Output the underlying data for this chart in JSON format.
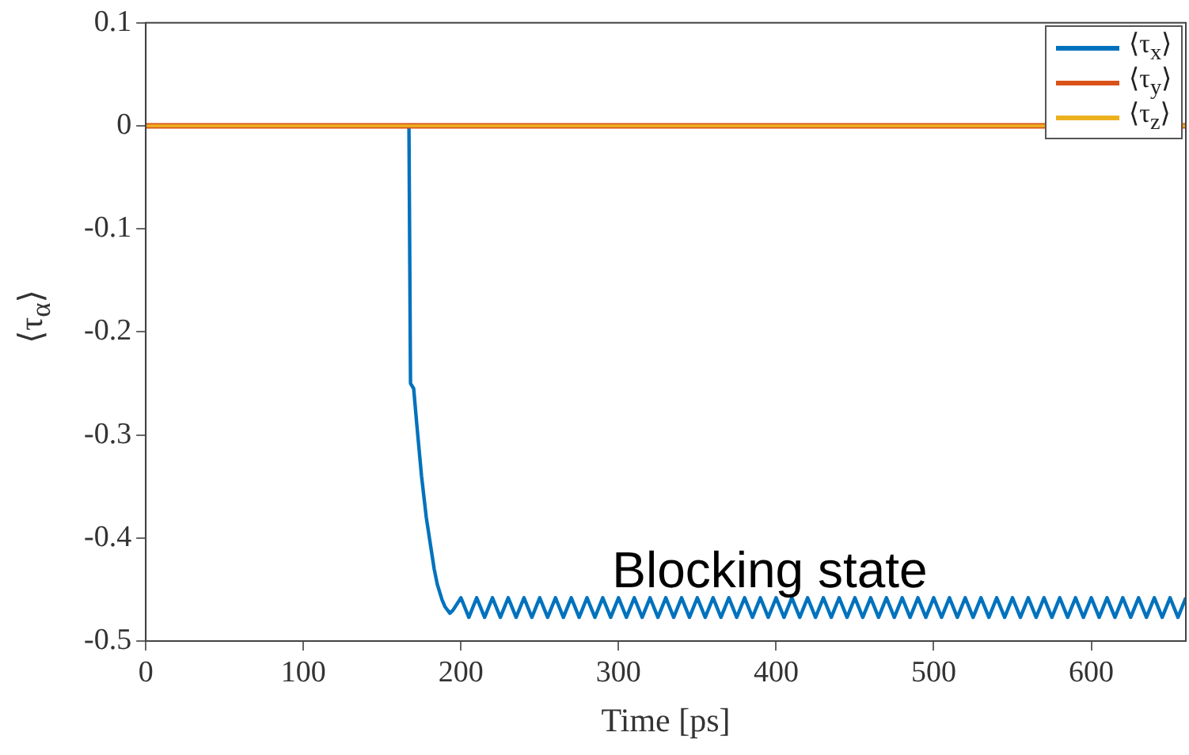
{
  "chart_data": {
    "type": "line",
    "xlabel": "Time [ps]",
    "ylabel": "⟨τ$_{α}$⟩",
    "xlim": [
      0,
      660
    ],
    "xticks": [
      0,
      100,
      200,
      300,
      400,
      500,
      600
    ],
    "ylim": [
      -0.5,
      0.1
    ],
    "yticks": [
      0.1,
      0,
      -0.1,
      -0.2,
      -0.3,
      -0.4,
      -0.5
    ],
    "grid": false,
    "legend": "top right",
    "marker": "none",
    "line_style": "solid",
    "annotations": [
      "Blocking state"
    ],
    "series": [
      {
        "name": "⟨τ$_{x}$⟩",
        "color": "#0072bd",
        "x": [
          0,
          167,
          168,
          170,
          172,
          175,
          178,
          180,
          183,
          185,
          188,
          190,
          193,
          195,
          200,
          205,
          210,
          215,
          220,
          225,
          230,
          235,
          240,
          245,
          250,
          255,
          260,
          265,
          270,
          275,
          280,
          285,
          290,
          295,
          300,
          305,
          310,
          315,
          320,
          325,
          330,
          335,
          340,
          345,
          350,
          355,
          360,
          365,
          370,
          375,
          380,
          385,
          390,
          395,
          400,
          405,
          410,
          415,
          420,
          425,
          430,
          435,
          440,
          445,
          450,
          455,
          460,
          465,
          470,
          475,
          480,
          485,
          490,
          495,
          500,
          505,
          510,
          515,
          520,
          525,
          530,
          535,
          540,
          545,
          550,
          555,
          560,
          565,
          570,
          575,
          580,
          585,
          590,
          595,
          600,
          605,
          610,
          615,
          620,
          625,
          630,
          635,
          640,
          645,
          650,
          655,
          660
        ],
        "values": [
          0,
          0,
          -0.25,
          -0.255,
          -0.29,
          -0.34,
          -0.38,
          -0.4,
          -0.43,
          -0.445,
          -0.46,
          -0.467,
          -0.473,
          -0.47,
          -0.458,
          -0.477,
          -0.458,
          -0.477,
          -0.458,
          -0.477,
          -0.458,
          -0.477,
          -0.458,
          -0.477,
          -0.458,
          -0.477,
          -0.458,
          -0.477,
          -0.458,
          -0.477,
          -0.458,
          -0.477,
          -0.458,
          -0.477,
          -0.458,
          -0.477,
          -0.458,
          -0.477,
          -0.458,
          -0.477,
          -0.458,
          -0.477,
          -0.458,
          -0.477,
          -0.458,
          -0.477,
          -0.458,
          -0.477,
          -0.458,
          -0.477,
          -0.458,
          -0.477,
          -0.458,
          -0.477,
          -0.458,
          -0.477,
          -0.458,
          -0.477,
          -0.458,
          -0.477,
          -0.458,
          -0.477,
          -0.458,
          -0.477,
          -0.458,
          -0.477,
          -0.458,
          -0.477,
          -0.458,
          -0.477,
          -0.458,
          -0.477,
          -0.458,
          -0.477,
          -0.458,
          -0.477,
          -0.458,
          -0.477,
          -0.458,
          -0.477,
          -0.458,
          -0.477,
          -0.458,
          -0.477,
          -0.458,
          -0.477,
          -0.458,
          -0.477,
          -0.458,
          -0.477,
          -0.458,
          -0.477,
          -0.458,
          -0.477,
          -0.458,
          -0.477,
          -0.458,
          -0.477,
          -0.458,
          -0.477,
          -0.458,
          -0.477,
          -0.458,
          -0.477,
          -0.458,
          -0.477,
          -0.458
        ]
      },
      {
        "name": "⟨τ$_{y}$⟩",
        "color": "#d95319",
        "x": [
          0,
          660
        ],
        "values": [
          0,
          0
        ]
      },
      {
        "name": "⟨τ$_{z}$⟩",
        "color": "#edb120",
        "x": [
          0,
          660
        ],
        "values": [
          0,
          0
        ]
      }
    ]
  }
}
